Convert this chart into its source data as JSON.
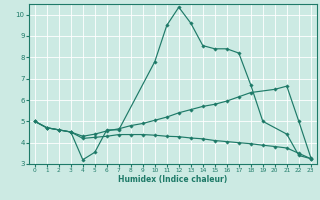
{
  "xlabel": "Humidex (Indice chaleur)",
  "xlim": [
    -0.5,
    23.5
  ],
  "ylim": [
    3,
    10.5
  ],
  "yticks": [
    3,
    4,
    5,
    6,
    7,
    8,
    9,
    10
  ],
  "xticks": [
    0,
    1,
    2,
    3,
    4,
    5,
    6,
    7,
    8,
    9,
    10,
    11,
    12,
    13,
    14,
    15,
    16,
    17,
    18,
    19,
    20,
    21,
    22,
    23
  ],
  "bg_color": "#cceae3",
  "grid_color": "#ffffff",
  "line_color": "#1e7a68",
  "marker_color": "#1e7a68",
  "bottom_bar_color": "#5aaa99",
  "lines": [
    {
      "x": [
        0,
        1,
        2,
        3,
        4,
        5,
        6,
        7,
        10,
        11,
        12,
        13,
        14,
        15,
        16,
        17,
        18,
        19,
        21,
        22,
        23
      ],
      "y": [
        5.0,
        4.7,
        4.6,
        4.5,
        3.2,
        3.55,
        4.6,
        4.6,
        7.8,
        9.5,
        10.35,
        9.6,
        8.55,
        8.4,
        8.4,
        8.2,
        6.7,
        5.0,
        4.4,
        3.4,
        3.25
      ]
    },
    {
      "x": [
        0,
        1,
        2,
        3,
        4,
        5,
        6,
        7,
        8,
        9,
        10,
        11,
        12,
        13,
        14,
        15,
        16,
        17,
        18,
        20,
        21,
        22,
        23
      ],
      "y": [
        5.0,
        4.7,
        4.6,
        4.5,
        4.3,
        4.4,
        4.55,
        4.65,
        4.8,
        4.9,
        5.05,
        5.2,
        5.4,
        5.55,
        5.7,
        5.8,
        5.95,
        6.15,
        6.35,
        6.5,
        6.65,
        5.0,
        3.3
      ]
    },
    {
      "x": [
        0,
        1,
        2,
        3,
        4,
        5,
        6,
        7,
        8,
        9,
        10,
        11,
        12,
        13,
        14,
        15,
        16,
        17,
        18,
        19,
        20,
        21,
        22,
        23
      ],
      "y": [
        5.0,
        4.7,
        4.6,
        4.5,
        4.2,
        4.25,
        4.3,
        4.38,
        4.38,
        4.38,
        4.35,
        4.3,
        4.28,
        4.22,
        4.18,
        4.1,
        4.05,
        4.0,
        3.95,
        3.88,
        3.82,
        3.75,
        3.5,
        3.25
      ]
    }
  ]
}
